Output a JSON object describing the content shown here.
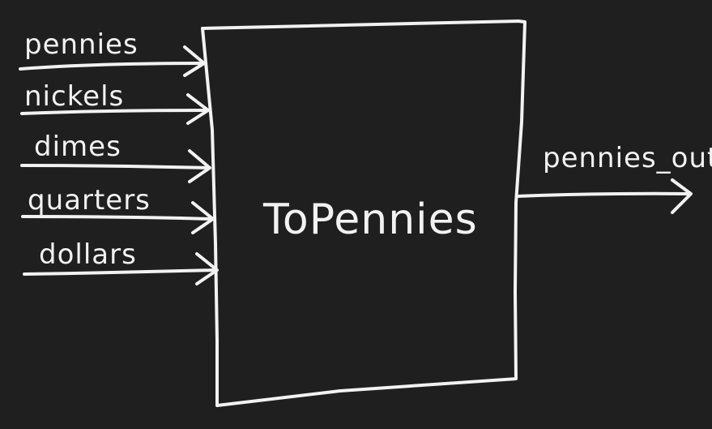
{
  "diagram": {
    "block_title": "ToPennies",
    "inputs": [
      {
        "label": "pennies"
      },
      {
        "label": "nickels"
      },
      {
        "label": "dimes"
      },
      {
        "label": "quarters"
      },
      {
        "label": "dollars"
      }
    ],
    "output": {
      "label": "pennies_out"
    }
  },
  "colors": {
    "background": "#1f1f1f",
    "ink": "#f2f2f2"
  }
}
